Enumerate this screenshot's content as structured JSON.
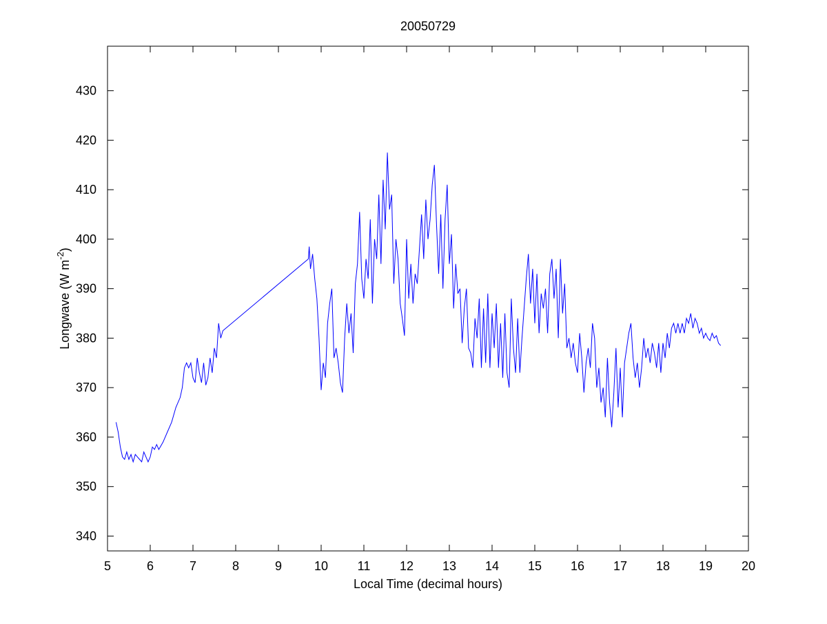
{
  "chart_data": {
    "type": "line",
    "title": "20050729",
    "x_label": "Local Time (decimal hours)",
    "y_label": [
      "Longwave (W m",
      "-2",
      ")"
    ],
    "color": "#0000ff",
    "xlim": [
      5,
      20
    ],
    "ylim": [
      337,
      439
    ],
    "xticks": [
      5,
      6,
      7,
      8,
      9,
      10,
      11,
      12,
      13,
      14,
      15,
      16,
      17,
      18,
      19,
      20
    ],
    "yticks": [
      340,
      350,
      360,
      370,
      380,
      390,
      400,
      410,
      420,
      430
    ],
    "grid": false,
    "x": [
      5.2,
      5.25,
      5.3,
      5.35,
      5.4,
      5.45,
      5.5,
      5.55,
      5.6,
      5.65,
      5.7,
      5.75,
      5.8,
      5.85,
      5.9,
      5.95,
      6.0,
      6.05,
      6.1,
      6.15,
      6.2,
      6.3,
      6.4,
      6.5,
      6.6,
      6.7,
      6.75,
      6.8,
      6.85,
      6.9,
      6.95,
      7.0,
      7.05,
      7.1,
      7.15,
      7.2,
      7.25,
      7.3,
      7.35,
      7.4,
      7.45,
      7.5,
      7.55,
      7.6,
      7.65,
      7.7,
      9.7,
      9.72,
      9.75,
      9.8,
      9.85,
      9.9,
      9.95,
      10.0,
      10.05,
      10.1,
      10.15,
      10.2,
      10.25,
      10.3,
      10.35,
      10.4,
      10.45,
      10.5,
      10.55,
      10.6,
      10.65,
      10.7,
      10.75,
      10.8,
      10.85,
      10.9,
      10.95,
      11.0,
      11.05,
      11.1,
      11.15,
      11.2,
      11.25,
      11.3,
      11.35,
      11.4,
      11.45,
      11.5,
      11.55,
      11.6,
      11.65,
      11.7,
      11.75,
      11.8,
      11.85,
      11.9,
      11.95,
      12.0,
      12.05,
      12.1,
      12.15,
      12.2,
      12.25,
      12.3,
      12.35,
      12.4,
      12.45,
      12.5,
      12.55,
      12.6,
      12.65,
      12.7,
      12.75,
      12.8,
      12.85,
      12.9,
      12.95,
      13.0,
      13.05,
      13.1,
      13.15,
      13.2,
      13.25,
      13.3,
      13.35,
      13.4,
      13.45,
      13.5,
      13.55,
      13.6,
      13.65,
      13.7,
      13.75,
      13.8,
      13.85,
      13.9,
      13.95,
      14.0,
      14.05,
      14.1,
      14.15,
      14.2,
      14.25,
      14.3,
      14.35,
      14.4,
      14.45,
      14.5,
      14.55,
      14.6,
      14.65,
      14.7,
      14.75,
      14.8,
      14.85,
      14.9,
      14.95,
      15.0,
      15.05,
      15.1,
      15.15,
      15.2,
      15.25,
      15.3,
      15.35,
      15.4,
      15.45,
      15.5,
      15.55,
      15.6,
      15.65,
      15.7,
      15.75,
      15.8,
      15.85,
      15.9,
      15.95,
      16.0,
      16.05,
      16.1,
      16.15,
      16.2,
      16.25,
      16.3,
      16.35,
      16.4,
      16.45,
      16.5,
      16.55,
      16.6,
      16.65,
      16.7,
      16.75,
      16.8,
      16.85,
      16.9,
      16.95,
      17.0,
      17.05,
      17.1,
      17.15,
      17.2,
      17.25,
      17.3,
      17.35,
      17.4,
      17.45,
      17.5,
      17.55,
      17.6,
      17.65,
      17.7,
      17.75,
      17.8,
      17.85,
      17.9,
      17.95,
      18.0,
      18.05,
      18.1,
      18.15,
      18.2,
      18.25,
      18.3,
      18.35,
      18.4,
      18.45,
      18.5,
      18.55,
      18.6,
      18.65,
      18.7,
      18.75,
      18.8,
      18.85,
      18.9,
      18.95,
      19.0,
      19.05,
      19.1,
      19.15,
      19.2,
      19.25,
      19.3,
      19.35
    ],
    "values": [
      363,
      361,
      358,
      356,
      355.5,
      357,
      355.5,
      356.5,
      355,
      356.5,
      356,
      355.5,
      355,
      357,
      356,
      355,
      356,
      358,
      357.5,
      358.5,
      357.5,
      359,
      361,
      363,
      366,
      368,
      370,
      374,
      375,
      374,
      375,
      372,
      371,
      376,
      373,
      371,
      375,
      370.5,
      372,
      376,
      373,
      378,
      376,
      383,
      380,
      381.5,
      396,
      398.5,
      394,
      397,
      392,
      388,
      380,
      369.5,
      375,
      372,
      383,
      387,
      390,
      376,
      378,
      375,
      371,
      369,
      380,
      387,
      381,
      385,
      377,
      391,
      395,
      405.5,
      392,
      388,
      396,
      392,
      404,
      387,
      400,
      396,
      409,
      395,
      412,
      402,
      417.5,
      406,
      409,
      391,
      400,
      396,
      387,
      384,
      380.5,
      400,
      388,
      395,
      387,
      393,
      391,
      398,
      405,
      396,
      408,
      400,
      404,
      411,
      415,
      403,
      393,
      405,
      390,
      404,
      411,
      395,
      401,
      386,
      395,
      389,
      390,
      379,
      386,
      390,
      378,
      377,
      374,
      384,
      380,
      388,
      374,
      386,
      375,
      389,
      374,
      385,
      378,
      387,
      374,
      383,
      372,
      385,
      373,
      370,
      388,
      378,
      373,
      384,
      373,
      380,
      386,
      392,
      397,
      387,
      394,
      383,
      393,
      381,
      389,
      386,
      390,
      381,
      393,
      396,
      388,
      394,
      380,
      396,
      385,
      391,
      378,
      380,
      376,
      379,
      375,
      373,
      381,
      376,
      369,
      375,
      378,
      374,
      383,
      380,
      370,
      374,
      367,
      370,
      364,
      376,
      367,
      362,
      369,
      378,
      366,
      374,
      364,
      375,
      378,
      381,
      383,
      376,
      372,
      375,
      370,
      374,
      380,
      376,
      378,
      375,
      379,
      377,
      374,
      379,
      373,
      379,
      376,
      381,
      378,
      382,
      383,
      381,
      383,
      381,
      383,
      381,
      384,
      383,
      385,
      382,
      384,
      383,
      381,
      382,
      380,
      381,
      380,
      379.5,
      381,
      380,
      380.5,
      379,
      378.5
    ]
  }
}
